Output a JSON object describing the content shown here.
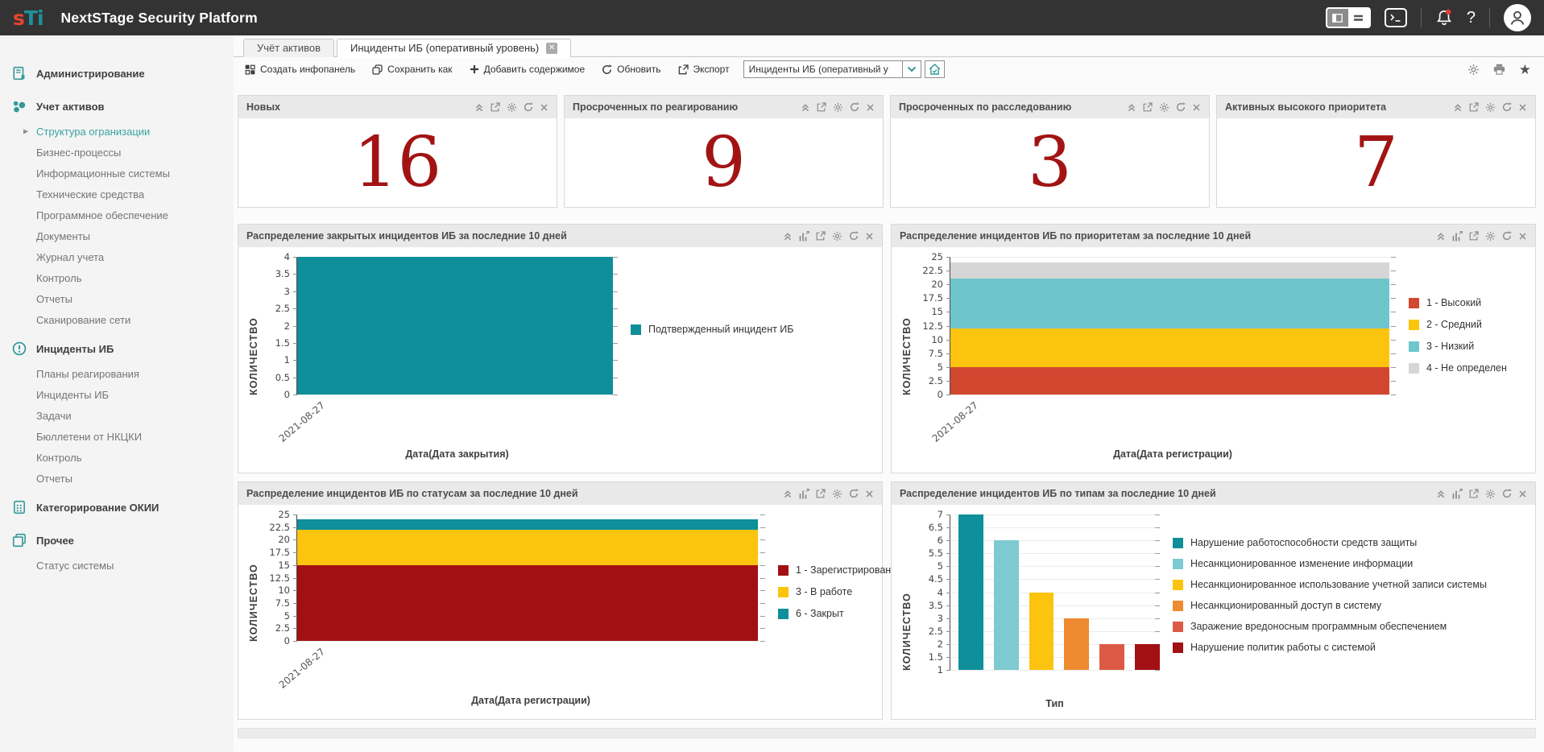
{
  "header": {
    "title": "NextSTage Security Platform",
    "logo_s": "s",
    "logo_ti": "Ti"
  },
  "tabs": [
    {
      "label": "Учёт активов",
      "active": false
    },
    {
      "label": "Инциденты ИБ (оперативный уровень)",
      "active": true,
      "closable": true
    }
  ],
  "toolbar": {
    "create_dashboard": "Создать инфопанель",
    "save_as": "Сохранить как",
    "add_content": "Добавить содержимое",
    "refresh": "Обновить",
    "export": "Экспорт",
    "dashboard_select_value": "Инциденты ИБ (оперативный у"
  },
  "sidebar": {
    "sections": [
      {
        "label": "Администрирование",
        "icon": "admin",
        "items": []
      },
      {
        "label": "Учет активов",
        "icon": "assets",
        "items": [
          {
            "label": "Структура огранизации",
            "active": true
          },
          {
            "label": "Бизнес-процессы"
          },
          {
            "label": "Информационные системы"
          },
          {
            "label": "Технические средства"
          },
          {
            "label": "Программное обеспечение"
          },
          {
            "label": "Документы"
          },
          {
            "label": "Журнал учета"
          },
          {
            "label": "Контроль"
          },
          {
            "label": "Отчеты"
          },
          {
            "label": "Сканирование сети"
          }
        ]
      },
      {
        "label": "Инциденты ИБ",
        "icon": "incidents",
        "items": [
          {
            "label": "Планы реагирования"
          },
          {
            "label": "Инциденты ИБ"
          },
          {
            "label": "Задачи"
          },
          {
            "label": "Бюллетени от НКЦКИ"
          },
          {
            "label": "Контроль"
          },
          {
            "label": "Отчеты"
          }
        ]
      },
      {
        "label": "Категорирование ОКИИ",
        "icon": "categorization",
        "items": []
      },
      {
        "label": "Прочее",
        "icon": "misc",
        "items": [
          {
            "label": "Статус системы"
          }
        ]
      }
    ]
  },
  "kpi_color": "#a21414",
  "kpis": [
    {
      "title": "Новых",
      "value": "16"
    },
    {
      "title": "Просроченных по реагированию",
      "value": "9"
    },
    {
      "title": "Просроченных по расследованию",
      "value": "3"
    },
    {
      "title": "Активных высокого приоритета",
      "value": "7"
    }
  ],
  "chart_data": [
    {
      "type": "bar",
      "title": "Распределение закрытых инцидентов ИБ за последние 10 дней",
      "ylabel": "КОЛИЧЕСТВО",
      "xlabel": "Дата(Дата закрытия)",
      "x_ticks": [
        "2021-08-27"
      ],
      "ylim": [
        0,
        4
      ],
      "ytick_step": 0.5,
      "grid": true,
      "legend_position": "right",
      "series": [
        {
          "name": "Подтвержденный инцидент ИБ",
          "color": "#0e8f99",
          "values": [
            4
          ]
        }
      ]
    },
    {
      "type": "stacked-bar",
      "title": "Распределение инцидентов ИБ по приоритетам за последние 10 дней",
      "ylabel": "КОЛИЧЕСТВО",
      "xlabel": "Дата(Дата регистрации)",
      "x_ticks": [
        "2021-08-27"
      ],
      "ylim": [
        0,
        25
      ],
      "ytick_step": 2.5,
      "grid": true,
      "legend_position": "right",
      "series": [
        {
          "name": "1 - Высокий",
          "color": "#d2472f",
          "values": [
            5
          ]
        },
        {
          "name": "2 - Средний",
          "color": "#fcc40e",
          "values": [
            7
          ]
        },
        {
          "name": "3 - Низкий",
          "color": "#6fc5cc",
          "values": [
            9
          ]
        },
        {
          "name": "4 - Не определен",
          "color": "#d6d6d6",
          "values": [
            3
          ]
        }
      ]
    },
    {
      "type": "stacked-bar",
      "title": "Распределение инцидентов ИБ по статусам за последние 10 дней",
      "ylabel": "КОЛИЧЕСТВО",
      "xlabel": "Дата(Дата регистрации)",
      "x_ticks": [
        "2021-08-27"
      ],
      "ylim": [
        0,
        25
      ],
      "ytick_step": 2.5,
      "grid": true,
      "legend_position": "right",
      "series": [
        {
          "name": "1 - Зарегистрирован",
          "color": "#a31014",
          "values": [
            15
          ]
        },
        {
          "name": "3 - В работе",
          "color": "#fcc40e",
          "values": [
            7
          ]
        },
        {
          "name": "6 - Закрыт",
          "color": "#0e8f99",
          "values": [
            2
          ]
        }
      ]
    },
    {
      "type": "grouped-bar",
      "title": "Распределение инцидентов ИБ по типам за последние 10 дней",
      "ylabel": "КОЛИЧЕСТВО",
      "xlabel": "Тип",
      "ylim": [
        1,
        7
      ],
      "ytick_step": 0.5,
      "grid": true,
      "legend_position": "right",
      "series": [
        {
          "name": "Нарушение работоспособности средств защиты",
          "color": "#0e8f99",
          "values": [
            7
          ]
        },
        {
          "name": "Несанкционированное изменение информации",
          "color": "#7ecad1",
          "values": [
            6
          ]
        },
        {
          "name": "Несанкционированное использование учетной записи системы",
          "color": "#fcc40e",
          "values": [
            4
          ]
        },
        {
          "name": "Несанкционированный доступ в систему",
          "color": "#ee8a30",
          "values": [
            3
          ]
        },
        {
          "name": "Заражение вредоносным программным обеспечением",
          "color": "#dc5a45",
          "values": [
            2
          ]
        },
        {
          "name": "Нарушение политик работы с системой",
          "color": "#a31014",
          "values": [
            2
          ]
        }
      ]
    }
  ]
}
